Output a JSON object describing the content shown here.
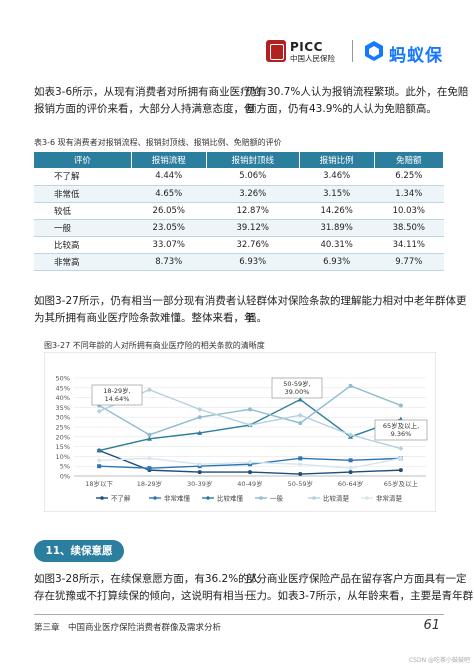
{
  "header": {
    "picc_brand": "PICC",
    "picc_sub": "中国人民保险",
    "mayi_brand": "蚂蚁保"
  },
  "para1_left": [
    "如表3-6所示，从现有消费者对所拥有商业医疗险",
    "报销方面的评价来看，大部分人持满意态度，但"
  ],
  "para1_right": [
    "仍有30.7%人认为报销流程繁琐。此外，在免赔",
    "额方面，仍有43.9%的人认为免赔额高。"
  ],
  "table": {
    "caption": "表3-6 现有消费者对报销流程、报销封顶线、报销比例、免赔额的评价",
    "headers": [
      "评价",
      "报销流程",
      "报销封顶线",
      "报销比例",
      "免赔额"
    ],
    "rows": [
      [
        "不了解",
        "4.44%",
        "5.06%",
        "3.46%",
        "6.25%"
      ],
      [
        "非常低",
        "4.65%",
        "3.26%",
        "3.15%",
        "1.34%"
      ],
      [
        "较低",
        "26.05%",
        "12.87%",
        "14.26%",
        "10.03%"
      ],
      [
        "一般",
        "23.05%",
        "39.12%",
        "31.89%",
        "38.50%"
      ],
      [
        "比较高",
        "33.07%",
        "32.76%",
        "40.31%",
        "34.11%"
      ],
      [
        "非常高",
        "8.73%",
        "6.93%",
        "6.93%",
        "9.77%"
      ]
    ]
  },
  "para2_left": [
    "如图3-27所示，仍有相当一部分现有消费者认",
    "为其所拥有商业医疗险条款难懂。整体来看，年"
  ],
  "para2_right": [
    "轻群体对保险条款的理解能力相对中老年群体更",
    "强。"
  ],
  "figure": {
    "caption": "图3-27 不同年龄的人对所拥有商业医疗险的相关条款的清晰度"
  },
  "chart_data": {
    "type": "line",
    "title": "图3-27 不同年龄的人对所拥有商业医疗险的相关条款的清晰度",
    "categories": [
      "18岁以下",
      "18-29岁",
      "30-39岁",
      "40-49岁",
      "50-59岁",
      "60-64岁",
      "65岁及以上"
    ],
    "y_tick_labels": [
      "0%",
      "5%",
      "10%",
      "15%",
      "20%",
      "25%",
      "30%",
      "35%",
      "40%",
      "45%",
      "50%"
    ],
    "ylim": [
      0,
      50
    ],
    "legend_position": "bottom",
    "series": [
      {
        "name": "不了解",
        "color": "#1f4e79",
        "values": [
          13,
          3,
          2,
          2,
          1,
          2,
          3
        ]
      },
      {
        "name": "非常难懂",
        "color": "#2e75b6",
        "values": [
          5,
          4,
          5,
          6,
          9,
          8,
          9
        ]
      },
      {
        "name": "比较难懂",
        "color": "#2c7e9e",
        "values": [
          13,
          19,
          22,
          26,
          39,
          20,
          29
        ]
      },
      {
        "name": "一般",
        "color": "#8fbcd0",
        "values": [
          36,
          21,
          30,
          34,
          27,
          46,
          36
        ]
      },
      {
        "name": "比较清楚",
        "color": "#b3d1de",
        "values": [
          33,
          44,
          34,
          26,
          31,
          21,
          14
        ]
      },
      {
        "name": "非常清楚",
        "color": "#d6e6ee",
        "values": [
          8,
          9,
          6,
          7,
          6,
          4,
          9
        ]
      }
    ],
    "annotations": [
      {
        "label": "18-29岁,",
        "value_label": "14.64%",
        "category": "18-29岁"
      },
      {
        "label": "50-59岁,",
        "value_label": "39.00%",
        "category": "50-59岁"
      },
      {
        "label": "65岁及以上,",
        "value_label": "9.36%",
        "category": "65岁及以上"
      }
    ]
  },
  "section": {
    "title": "11、续保意愿"
  },
  "para3_left": [
    "如图3-28所示，在续保意愿方面，有36.2%的人",
    "存在犹豫或不打算续保的倾向，这说明有相当一"
  ],
  "para3_right": [
    "部分商业医疗保险产品在留存客户方面具有一定",
    "压力。如表3-7所示，从年龄来看，主要是青年群"
  ],
  "footer": {
    "chapter": "第三章　中国商业医疗保险消费者群像及需求分析",
    "page": "61",
    "watermark": "CSDN @吃茶小鼓鼓吧"
  }
}
